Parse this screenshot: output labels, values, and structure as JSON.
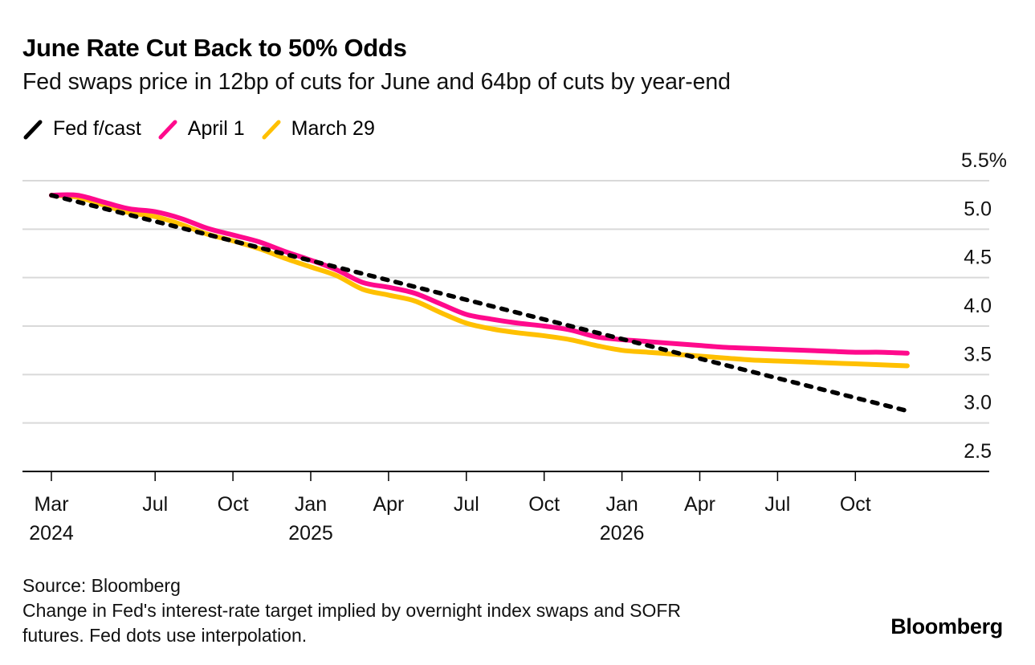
{
  "chart_data": {
    "type": "line",
    "title": "June Rate Cut Back to 50% Odds",
    "subtitle": "Fed swaps price in 12bp of cuts for June and 64bp of cuts by year-end",
    "xlabel": "",
    "ylabel": "",
    "ylim": [
      2.5,
      5.5
    ],
    "y_ticks": [
      "5.5%",
      "5.0",
      "4.5",
      "4.0",
      "3.5",
      "3.0",
      "2.5"
    ],
    "y_tick_values": [
      5.5,
      5.0,
      4.5,
      4.0,
      3.5,
      3.0,
      2.5
    ],
    "x_ticks": [
      {
        "month_index": 0,
        "label": "Mar",
        "year": "2024"
      },
      {
        "month_index": 4,
        "label": "Jul",
        "year": ""
      },
      {
        "month_index": 7,
        "label": "Oct",
        "year": ""
      },
      {
        "month_index": 10,
        "label": "Jan",
        "year": "2025"
      },
      {
        "month_index": 13,
        "label": "Apr",
        "year": ""
      },
      {
        "month_index": 16,
        "label": "Jul",
        "year": ""
      },
      {
        "month_index": 19,
        "label": "Oct",
        "year": ""
      },
      {
        "month_index": 22,
        "label": "Jan",
        "year": "2026"
      },
      {
        "month_index": 25,
        "label": "Apr",
        "year": ""
      },
      {
        "month_index": 28,
        "label": "Jul",
        "year": ""
      },
      {
        "month_index": 31,
        "label": "Oct",
        "year": ""
      }
    ],
    "x_range_months": [
      0,
      33
    ],
    "x_axis_end_months": 36.3,
    "grid": true,
    "legend_position": "top-left",
    "x": [
      "Mar 2024",
      "Apr 2024",
      "May 2024",
      "Jun 2024",
      "Jul 2024",
      "Aug 2024",
      "Sep 2024",
      "Oct 2024",
      "Nov 2024",
      "Dec 2024",
      "Jan 2025",
      "Feb 2025",
      "Mar 2025",
      "Apr 2025",
      "May 2025",
      "Jun 2025",
      "Jul 2025",
      "Aug 2025",
      "Sep 2025",
      "Oct 2025",
      "Nov 2025",
      "Dec 2025",
      "Jan 2026",
      "Feb 2026",
      "Mar 2026",
      "Apr 2026",
      "May 2026",
      "Jun 2026",
      "Jul 2026",
      "Aug 2026",
      "Sep 2026",
      "Oct 2026",
      "Nov 2026",
      "Dec 2026"
    ],
    "series": [
      {
        "name": "Fed f/cast",
        "color": "#000000",
        "style": "dashed",
        "values": [
          5.35,
          null,
          null,
          null,
          null,
          null,
          null,
          null,
          null,
          null,
          null,
          null,
          null,
          null,
          null,
          null,
          null,
          null,
          null,
          null,
          null,
          null,
          null,
          null,
          null,
          null,
          null,
          null,
          null,
          null,
          null,
          null,
          null,
          3.125
        ]
      },
      {
        "name": "March 29",
        "color": "#ffc000",
        "style": "solid",
        "values": [
          5.35,
          5.33,
          5.25,
          5.17,
          5.13,
          5.05,
          4.95,
          4.88,
          4.8,
          4.7,
          4.61,
          4.52,
          4.38,
          4.32,
          4.26,
          4.14,
          4.03,
          3.97,
          3.93,
          3.9,
          3.86,
          3.8,
          3.75,
          3.73,
          3.71,
          3.69,
          3.67,
          3.65,
          3.64,
          3.63,
          3.62,
          3.61,
          3.6,
          3.59
        ]
      },
      {
        "name": "April 1",
        "color": "#ff0a8c",
        "style": "solid",
        "values": [
          5.35,
          5.35,
          5.28,
          5.21,
          5.18,
          5.11,
          5.01,
          4.94,
          4.87,
          4.77,
          4.68,
          4.58,
          4.45,
          4.4,
          4.34,
          4.23,
          4.12,
          4.07,
          4.03,
          4.0,
          3.96,
          3.89,
          3.86,
          3.84,
          3.82,
          3.8,
          3.78,
          3.77,
          3.76,
          3.75,
          3.74,
          3.73,
          3.73,
          3.72
        ]
      }
    ],
    "legend": [
      {
        "name": "Fed f/cast",
        "color": "#000000"
      },
      {
        "name": "April 1",
        "color": "#ff0a8c"
      },
      {
        "name": "March 29",
        "color": "#ffc000"
      }
    ]
  },
  "footer": {
    "source": "Source: Bloomberg",
    "note_line1": "Change in Fed's interest-rate target implied by overnight index swaps and SOFR",
    "note_line2": "futures. Fed dots use interpolation."
  },
  "logo": "Bloomberg"
}
